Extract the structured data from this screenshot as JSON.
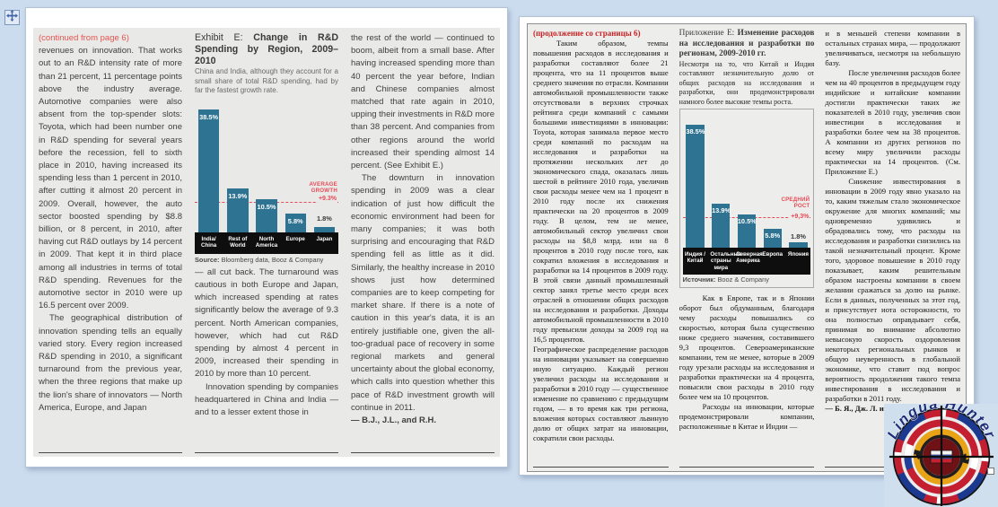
{
  "window": {
    "background": "#cbdcee",
    "page_color": "#ffffff",
    "panel_color": "#e9e9e8"
  },
  "left_page": {
    "continued_from": "(continued from page 6)",
    "col1": [
      "revenues on innovation. That works out to an R&D intensity rate of more than 21 percent, 11 percentage points above the industry average. Automotive companies were also absent from the top-spender slots: Toyota, which had been number one in R&D spending for several years before the recession, fell to sixth place in 2010, having increased its spending less than 1 percent in 2010, after cutting it almost 20 percent in 2009. Overall, however, the auto sector boosted spending by $8.8 billion, or 8 percent, in 2010, after having cut R&D outlays by 14 percent in 2009. That kept it in third place among all industries in terms of total R&D spending. Revenues for the automotive sector in 2010 were up 16.5 percent over 2009.",
      "\tThe geographical distribution of innovation spending tells an equally varied story. Every region increased R&D spending in 2010, a significant turnaround from the previous year, when the three regions that make up the lion's share of innovators — North America, Europe, and Japan"
    ],
    "exhibit": {
      "label": "Exhibit E: ",
      "title": "Change in R&D Spending by Region, 2009–2010",
      "subtitle": "China and India, although they account for a small share of total R&D spending, had by far the fastest growth rate.",
      "source_label": "Source:",
      "source_text": " Bloomberg data, Booz & Company"
    },
    "col2": [
      "— all cut back. The turnaround was cautious in both Europe and Japan, which increased spending at rates significantly below the average of 9.3 percent. North American companies, however, which had cut R&D spending by almost 4 percent in 2009, increased their spending in 2010 by more than 10 percent.",
      "\tInnovation spending by companies headquartered in China and India — and to a lesser extent those in"
    ],
    "col3": [
      "the rest of the world — continued to boom, albeit from a small base. After having increased spending more than 40 percent the year before, Indian and Chinese companies almost matched that rate again in 2010, upping their investments in R&D more than 38 percent. And companies from other regions around the world increased their spending almost 14 percent. (See Exhibit E.)",
      "\tThe downturn in innovation spending in 2009 was a clear indication of just how difficult the economic environment had been for many companies; it was both surprising and encouraging that R&D spending fell as little as it did. Similarly, the healthy increase in 2010 shows just how determined companies are to keep competing for market share. If there is a note of caution in this year's data, it is an entirely justifiable one, given the all-too-gradual pace of recovery in some regional markets and general uncertainty about the global economy, which calls into question whether this pace of R&D investment growth will continue in 2011."
    ],
    "byline": "— B.J., J.L., and R.H."
  },
  "right_page": {
    "continued_from": "(продолжение со страницы 6)",
    "col1": [
      "\tТаким образом, темпы повышения расходов в исследования и разработки составляют более 21 процента, что на 11 процентов выше среднего значения по отрасли. Компании автомобильной промышленности также отсутствовали в верхних строчках рейтинга среди компаний с самыми большими инвестициями в инновации: Toyota, которая занимала первое место среди компаний по расходам на исследования и разработки на протяжении нескольких лет до экономического спада, оказалась лишь шестой в рейтинге 2010 года, увеличив свои расходы менее чем на 1 процент в 2010 году после их снижения практически на 20 процентов в 2009 году. В целом, тем не менее, автомобильный сектор увеличил свои расходы на $8,8 млрд. или на 8 процентов в 2010 году после того, как сократил вложения в исследования и разработки на 14 процентов в 2009 году. В этой связи данный промышленный сектор занял третье место среди всех отраслей в отношении общих расходов на исследования и разработки. Доходы автомобильной промышленности в 2010 году превысили доходы за 2009 год на 16,5 процентов.",
      "Географическое распределение расходов на инновации указывает на совершенно иную ситуацию. Каждый регион увеличил расходы на исследования и разработки в 2010 году — существенное изменение по сравнению с предыдущим годом, — в то время как три региона, вложения которых составляют львиную долю от общих затрат на инновации, сократили свои расходы."
    ],
    "exhibit": {
      "label": "Приложение E: ",
      "title": "Изменение расходов на исследования и разработки по регионам, 2009-2010 гг.",
      "subtitle": "Несмотря на то, что Китай и Индия составляют незначительную долю от общих расходов на исследования и разработки, они продемонстрировали намного более высокие темпы роста.",
      "source_label": "Источник:",
      "source_text": " Booz & Company"
    },
    "col2": [
      "\tКак в Европе, так и в Японии оборот был обдуманным, благодаря чему расходы повышались со скоростью, которая была существенно ниже среднего значения, составившего 9,3 процентов. Североамериканские компании, тем не менее, которые в 2009 году урезали расходы на исследования и разработки практически на 4 процента, повысили свои расходы в 2010 году более чем на 10 процентов.",
      "\tРасходы на инновации, которые продемонстрировали компании, расположенные в Китае и Индии —"
    ],
    "col3": [
      "и в меньшей степени компании в остальных странах мира, — продолжают увеличиваться, несмотря на небольшую базу.",
      "\tПосле увеличения расходов более чем на 40 процентов в предыдущем году индийские и китайские компании достигли практически таких же показателей в 2010 году, увеличив свои инвестиции в исследования и разработки более чем на 38 процентов. А компании из других регионов по всему миру увеличили расходы практически на 14 процентов. (См. Приложение E.)",
      "\tСнижение инвестирования в инновации в 2009 году явно указало на то, каким тяжелым стало экономическое окружение для многих компаний; мы одновременно удивились и обрадовались тому, что расходы на исследования и разработки снизились на такой незначительный процент. Кроме того, здоровое повышение в 2010 году показывает, каким решительным образом настроены компании в своем желании сражаться за долю на рынке. Если в данных, полученных за этот год, и присутствует иота осторожности, то она полностью оправдывает себя, принимая во внимание абсолютно невысокую скорость оздоровления некоторых региональных рынков и общую неуверенность в глобальной экономике, что ставит под вопрос вероятность продолжения такого темпа инвестирования в исследования и разработки в 2011 году."
    ],
    "byline": "— Б. Я., Дж. Л. и Р. Х."
  },
  "chart_data": [
    {
      "type": "bar",
      "title": "Exhibit E: Change in R&D Spending by Region, 2009–2010",
      "subtitle": "China and India, although they account for a small share of total R&D spending, had by far the fastest growth rate.",
      "categories": [
        "India/\nChina",
        "Rest of\nWorld",
        "North\nAmerica",
        "Europe",
        "Japan"
      ],
      "values": [
        38.5,
        13.9,
        10.5,
        5.8,
        1.8
      ],
      "value_labels": [
        "38.5%",
        "13.9%",
        "10.5%",
        "5.8%",
        "1.8%"
      ],
      "average": 9.3,
      "average_label": "AVERAGE\nGROWTH",
      "average_value": "+9.3%",
      "ylim": [
        0,
        42
      ],
      "bar_color": "#2f7392",
      "accent_color": "#e84b55",
      "source": "Source: Bloomberg data, Booz & Company",
      "legend_position": "none",
      "grid": false
    },
    {
      "type": "bar",
      "title": "Приложение E: Изменение расходов на исследования и разработки по регионам, 2009-2010 гг.",
      "subtitle": "Несмотря на то, что Китай и Индия составляют незначительную долю от общих расходов на исследования и разработки, они продемонстрировали намного более высокие темпы роста.",
      "categories": [
        "Индия /\nКитай",
        "Остальные\nстраны мира",
        "Северная\nАмерика",
        "Европа",
        "Япония"
      ],
      "values": [
        38.5,
        13.9,
        10.5,
        5.8,
        1.8
      ],
      "value_labels": [
        "38.5%",
        "13.9%",
        "10.5%",
        "5.8%",
        "1.8%"
      ],
      "average": 9.3,
      "average_label": "СРЕДНИЙ\nРОСТ",
      "average_value": "+9,3%",
      "ylim": [
        0,
        42
      ],
      "bar_color": "#2f7392",
      "accent_color": "#e84b55",
      "source": "Источник: Booz & Company",
      "legend_position": "none",
      "grid": false
    }
  ],
  "logo": {
    "text": "Lingua Hunter"
  }
}
